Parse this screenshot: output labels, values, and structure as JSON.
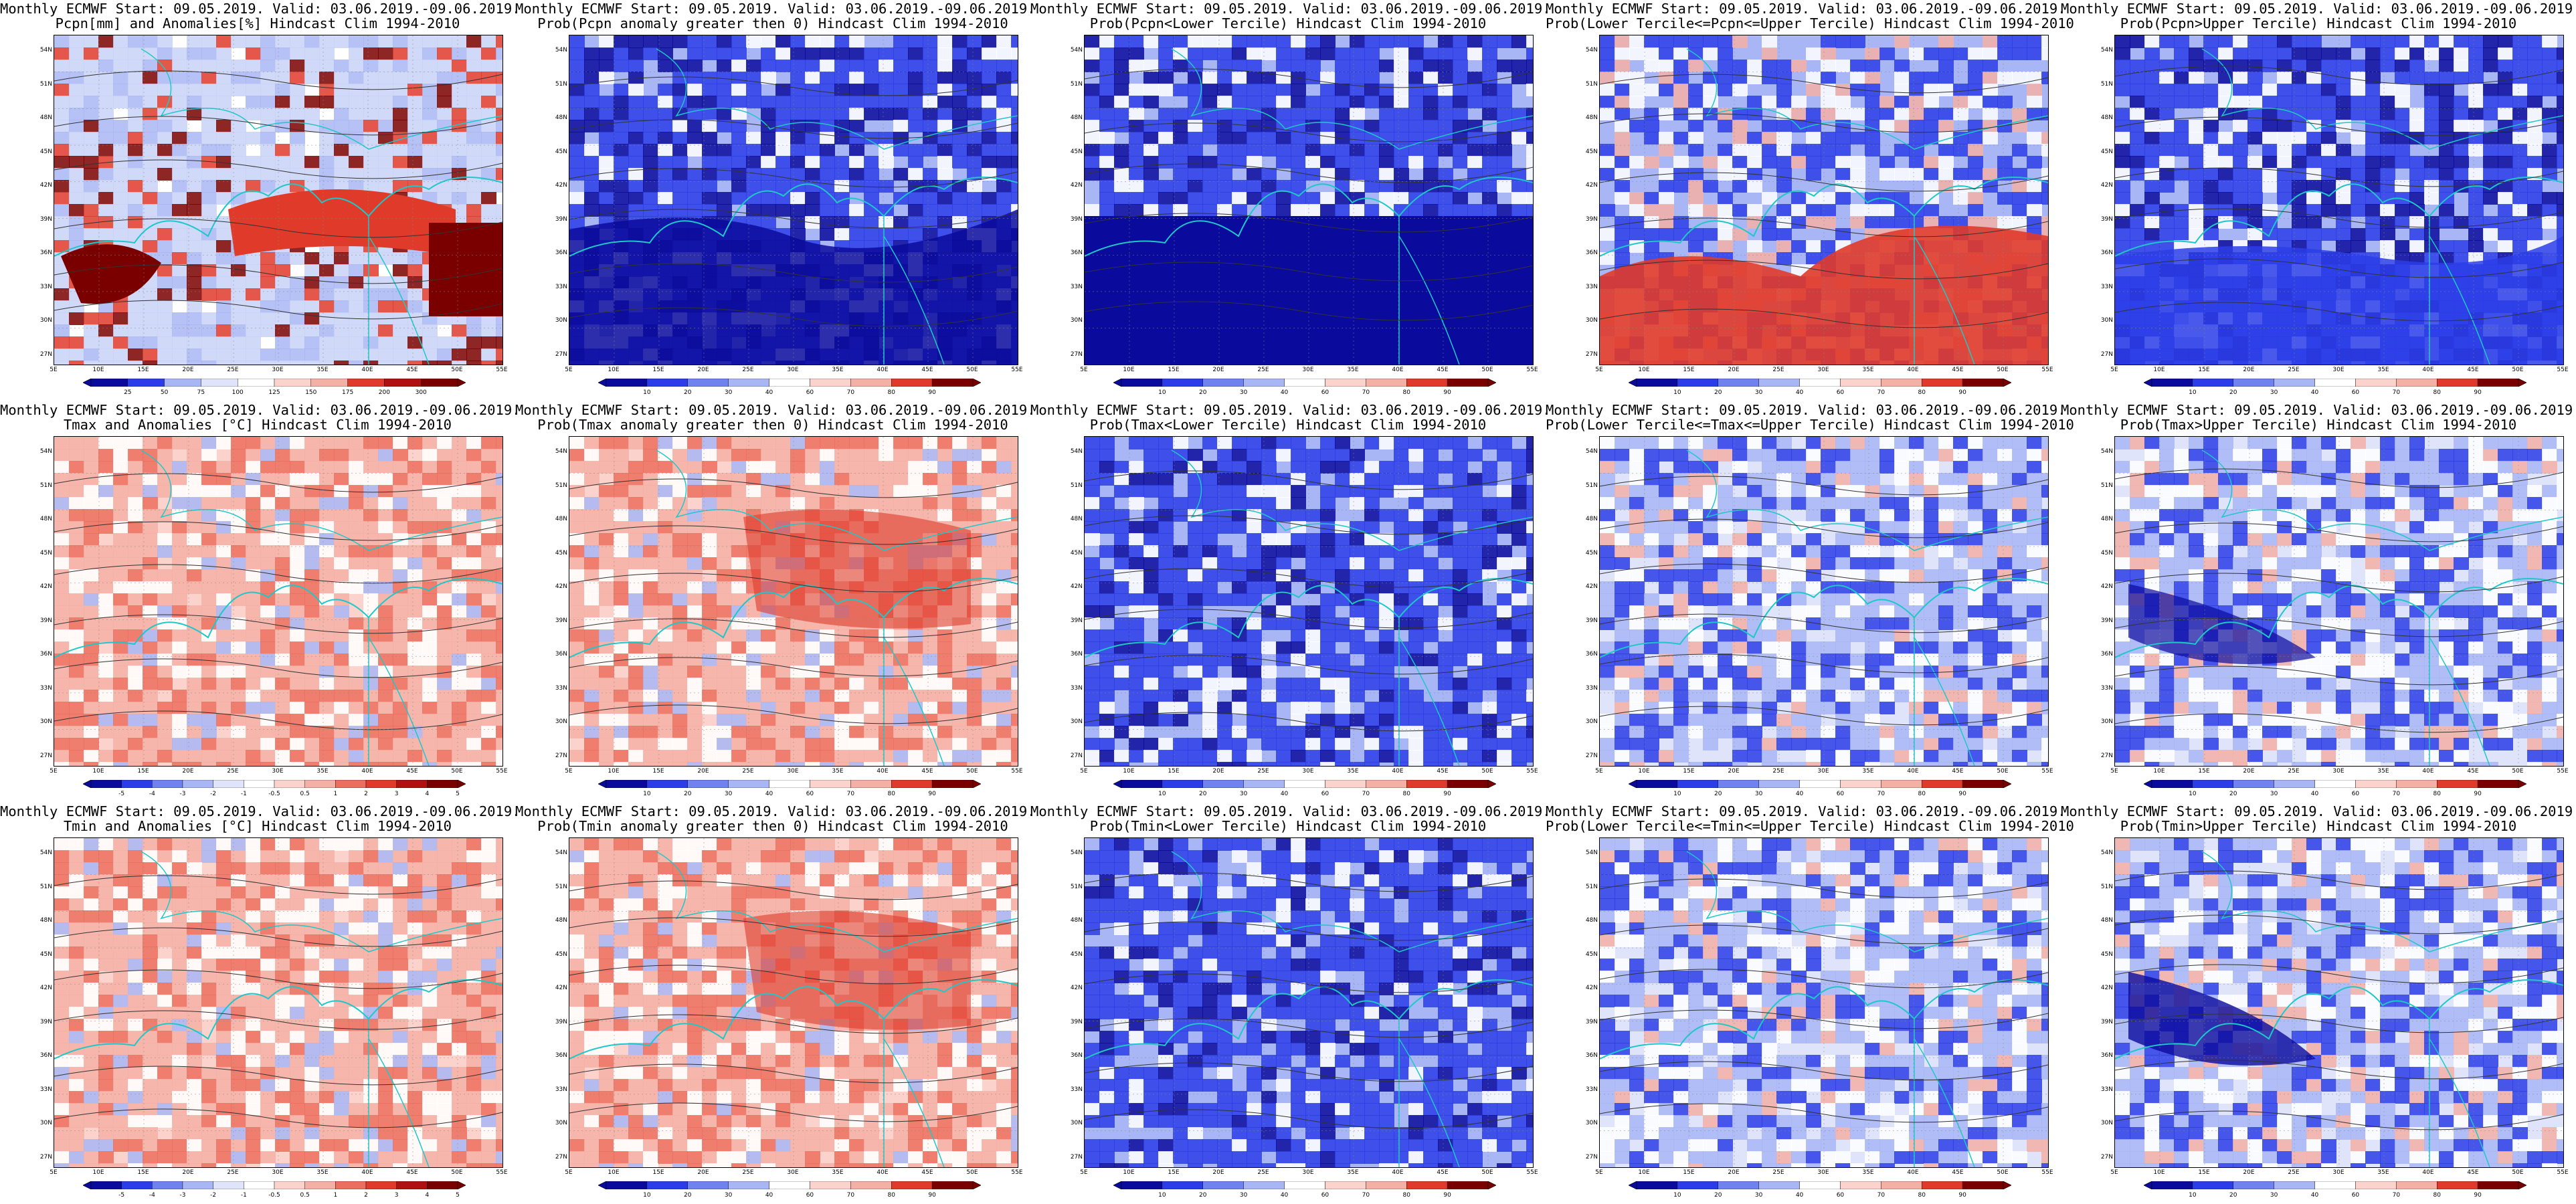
{
  "figure": {
    "colors": {
      "blue_dark": "#0a0a9c",
      "blue": "#2b3de8",
      "blue_light": "#a9b6f5",
      "white": "#ffffff",
      "red_light": "#f5b0a6",
      "red": "#e03a2a",
      "red_dark": "#7a0000",
      "coast": "#1ec8c8",
      "contour": "#333333"
    },
    "lat_labels": [
      "54N",
      "51N",
      "48N",
      "45N",
      "42N",
      "39N",
      "36N",
      "33N",
      "30N",
      "27N"
    ],
    "lon_labels": [
      "5E",
      "10E",
      "15E",
      "20E",
      "25E",
      "30E",
      "35E",
      "40E",
      "45E",
      "50E",
      "55E"
    ],
    "colorbars": {
      "pcpn_anomaly": [
        "25",
        "50",
        "75",
        "100",
        "125",
        "150",
        "175",
        "200",
        "300"
      ],
      "temp_anomaly": [
        "-5",
        "-4",
        "-3",
        "-2",
        "-1",
        "-0.5",
        "0.5",
        "1",
        "2",
        "3",
        "4",
        "5"
      ],
      "probability": [
        "10",
        "20",
        "30",
        "40",
        "60",
        "70",
        "80",
        "90"
      ]
    },
    "panels": [
      {
        "line1": "Monthly ECMWF Start: 09.05.2019. Valid: 03.06.2019.-09.06.2019.",
        "line2": "Pcpn[mm] and Anomalies[%] Hindcast Clim 1994-2010",
        "bar": "pcpn_anomaly"
      },
      {
        "line1": "Monthly ECMWF Start: 09.05.2019. Valid: 03.06.2019.-09.06.2019.",
        "line2": "Prob(Pcpn anomaly greater then 0) Hindcast Clim 1994-2010",
        "bar": "probability"
      },
      {
        "line1": "Monthly ECMWF Start: 09.05.2019. Valid: 03.06.2019.-09.06.2019.",
        "line2": "Prob(Pcpn<Lower Tercile) Hindcast Clim 1994-2010",
        "bar": "probability"
      },
      {
        "line1": "Monthly ECMWF Start: 09.05.2019. Valid: 03.06.2019.-09.06.2019.",
        "line2": "Prob(Lower Tercile<=Pcpn<=Upper Tercile) Hindcast Clim 1994-2010",
        "bar": "probability"
      },
      {
        "line1": "Monthly ECMWF Start: 09.05.2019. Valid: 03.06.2019.-09.06.2019.",
        "line2": "Prob(Pcpn>Upper Tercile) Hindcast Clim 1994-2010",
        "bar": "probability"
      },
      {
        "line1": "Monthly ECMWF Start: 09.05.2019. Valid: 03.06.2019.-09.06.2019.",
        "line2": "Tmax and Anomalies [°C] Hindcast Clim 1994-2010",
        "bar": "temp_anomaly"
      },
      {
        "line1": "Monthly ECMWF Start: 09.05.2019. Valid: 03.06.2019.-09.06.2019.",
        "line2": "Prob(Tmax anomaly greater then 0) Hindcast Clim 1994-2010",
        "bar": "probability"
      },
      {
        "line1": "Monthly ECMWF Start: 09.05.2019. Valid: 03.06.2019.-09.06.2019.",
        "line2": "Prob(Tmax<Lower Tercile) Hindcast Clim 1994-2010",
        "bar": "probability"
      },
      {
        "line1": "Monthly ECMWF Start: 09.05.2019. Valid: 03.06.2019.-09.06.2019.",
        "line2": "Prob(Lower Tercile<=Tmax<=Upper Tercile) Hindcast Clim 1994-2010",
        "bar": "probability"
      },
      {
        "line1": "Monthly ECMWF Start: 09.05.2019. Valid: 03.06.2019.-09.06.2019.",
        "line2": "Prob(Tmax>Upper Tercile) Hindcast Clim 1994-2010",
        "bar": "probability"
      },
      {
        "line1": "Monthly ECMWF Start: 09.05.2019. Valid: 03.06.2019.-09.06.2019.",
        "line2": "Tmin and Anomalies [°C] Hindcast Clim 1994-2010",
        "bar": "temp_anomaly"
      },
      {
        "line1": "Monthly ECMWF Start: 09.05.2019. Valid: 03.06.2019.-09.06.2019.",
        "line2": "Prob(Tmin anomaly greater then 0) Hindcast Clim 1994-2010",
        "bar": "probability"
      },
      {
        "line1": "Monthly ECMWF Start: 09.05.2019. Valid: 03.06.2019.-09.06.2019.",
        "line2": "Prob(Tmin<Lower Tercile) Hindcast Clim 1994-2010",
        "bar": "probability"
      },
      {
        "line1": "Monthly ECMWF Start: 09.05.2019. Valid: 03.06.2019.-09.06.2019.",
        "line2": "Prob(Lower Tercile<=Tmin<=Upper Tercile) Hindcast Clim 1994-2010",
        "bar": "probability"
      },
      {
        "line1": "Monthly ECMWF Start: 09.05.2019. Valid: 03.06.2019.-09.06.2019.",
        "line2": "Prob(Tmin>Upper Tercile) Hindcast Clim 1994-2010",
        "bar": "probability"
      }
    ]
  }
}
